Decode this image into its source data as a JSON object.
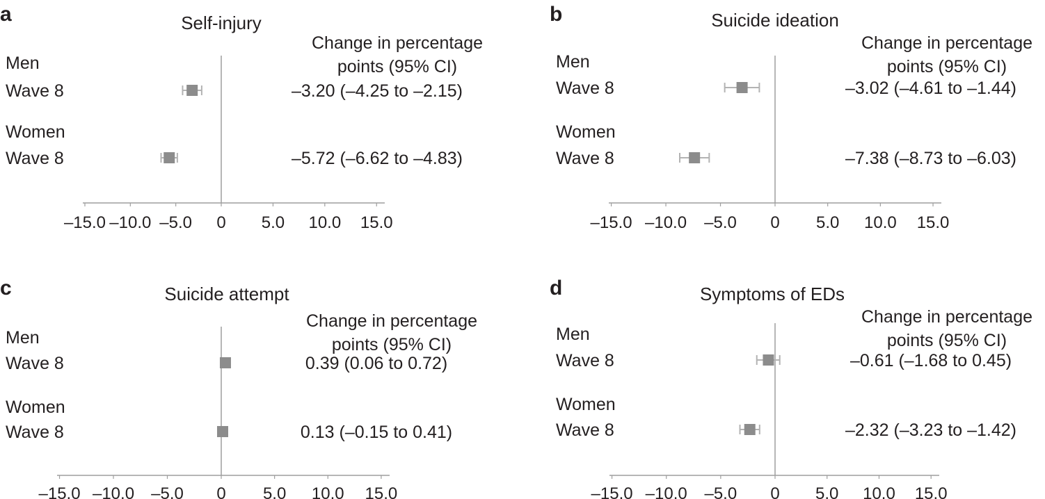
{
  "colors": {
    "marker": "#8c8c8c",
    "whisker": "#b3b3b3",
    "axis": "#9e9e9e",
    "text": "#231f20"
  },
  "chart_data": [
    {
      "type": "forest",
      "panel_letter": "a",
      "title": "Self-injury",
      "header": [
        "Change in percentage",
        "points (95% CI)"
      ],
      "xlim": [
        -15,
        15
      ],
      "ticks": [
        -15,
        -10,
        -5,
        0,
        5,
        10,
        15
      ],
      "tick_labels": [
        "–15.0",
        "–10.0",
        "–5.0",
        "0",
        "5.0",
        "10.0",
        "15.0"
      ],
      "groups": [
        {
          "group": "Men",
          "label": "Wave 8",
          "estimate": -3.2,
          "lower": -4.25,
          "upper": -2.15,
          "ci_text": "–3.20 (–4.25 to –2.15)"
        },
        {
          "group": "Women",
          "label": "Wave 8",
          "estimate": -5.72,
          "lower": -6.62,
          "upper": -4.83,
          "ci_text": "–5.72 (–6.62 to –4.83)"
        }
      ]
    },
    {
      "type": "forest",
      "panel_letter": "b",
      "title": "Suicide ideation",
      "header": [
        "Change in percentage",
        "points (95% CI)"
      ],
      "xlim": [
        -15,
        15
      ],
      "ticks": [
        -15,
        -10,
        -5,
        0,
        5,
        10,
        15
      ],
      "tick_labels": [
        "–15.0",
        "–10.0",
        "–5.0",
        "0",
        "5.0",
        "10.0",
        "15.0"
      ],
      "groups": [
        {
          "group": "Men",
          "label": "Wave 8",
          "estimate": -3.02,
          "lower": -4.61,
          "upper": -1.44,
          "ci_text": "–3.02 (–4.61 to –1.44)"
        },
        {
          "group": "Women",
          "label": "Wave 8",
          "estimate": -7.38,
          "lower": -8.73,
          "upper": -6.03,
          "ci_text": "–7.38 (–8.73 to –6.03)"
        }
      ]
    },
    {
      "type": "forest",
      "panel_letter": "c",
      "title": "Suicide attempt",
      "header": [
        "Change in percentage",
        "points (95% CI)"
      ],
      "xlim": [
        -15,
        15
      ],
      "ticks": [
        -15,
        -10,
        -5,
        0,
        5,
        10,
        15
      ],
      "tick_labels": [
        "–15.0",
        "–10.0",
        "–5.0",
        "0",
        "5.0",
        "10.0",
        "15.0"
      ],
      "groups": [
        {
          "group": "Men",
          "label": "Wave 8",
          "estimate": 0.39,
          "lower": 0.06,
          "upper": 0.72,
          "ci_text": "0.39 (0.06 to 0.72)"
        },
        {
          "group": "Women",
          "label": "Wave 8",
          "estimate": 0.13,
          "lower": -0.15,
          "upper": 0.41,
          "ci_text": "0.13 (–0.15 to 0.41)"
        }
      ]
    },
    {
      "type": "forest",
      "panel_letter": "d",
      "title": "Symptoms of EDs",
      "header": [
        "Change in percentage",
        "points (95% CI)"
      ],
      "xlim": [
        -15,
        15
      ],
      "ticks": [
        -15,
        -10,
        -5,
        0,
        5,
        10,
        15
      ],
      "tick_labels": [
        "–15.0",
        "–10.0",
        "–5.0",
        "0",
        "5.0",
        "10.0",
        "15.0"
      ],
      "groups": [
        {
          "group": "Men",
          "label": "Wave 8",
          "estimate": -0.61,
          "lower": -1.68,
          "upper": 0.45,
          "ci_text": "–0.61 (–1.68 to 0.45)"
        },
        {
          "group": "Women",
          "label": "Wave 8",
          "estimate": -2.32,
          "lower": -3.23,
          "upper": -1.42,
          "ci_text": "–2.32 (–3.23 to –1.42)"
        }
      ]
    }
  ]
}
